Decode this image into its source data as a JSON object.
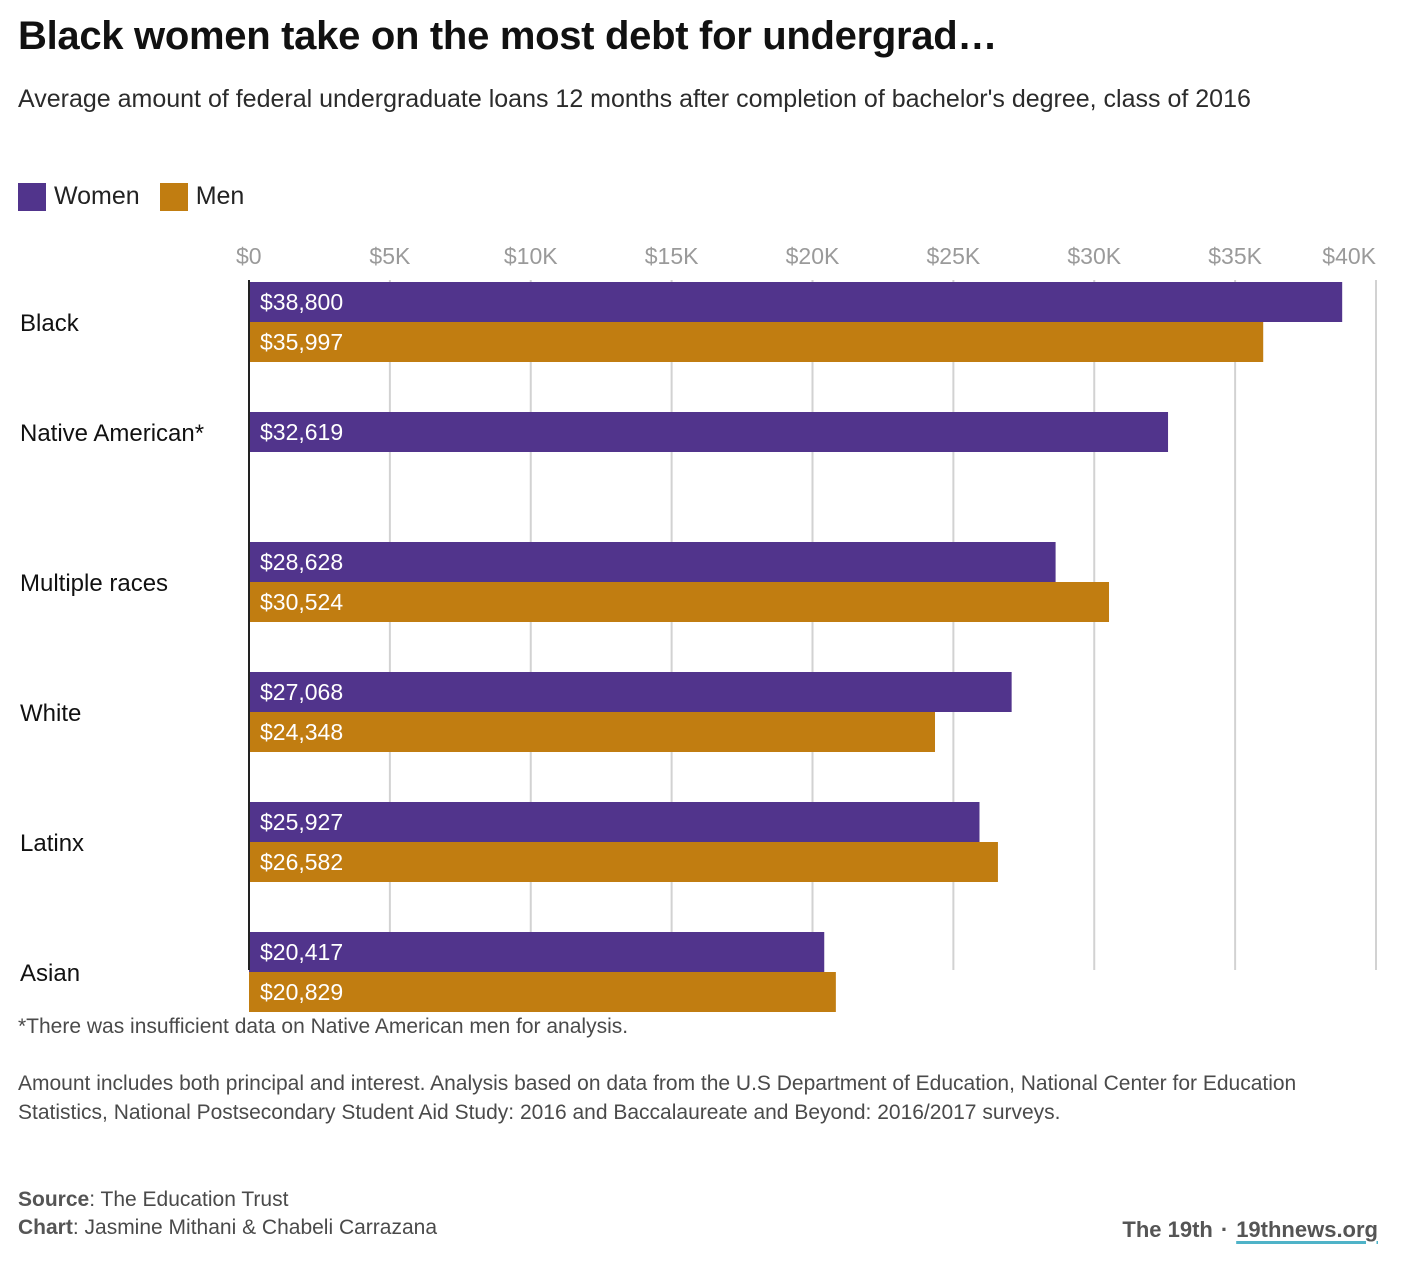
{
  "title": "Black women take on the most debt for undergrad…",
  "subtitle": "Average amount of federal undergraduate loans 12 months after completion of bachelor's degree, class of 2016",
  "legend": [
    {
      "label": "Women",
      "color": "#51348c"
    },
    {
      "label": "Men",
      "color": "#c17d11"
    }
  ],
  "chart_data": {
    "type": "bar",
    "orientation": "horizontal",
    "categories": [
      "Black",
      "Native American*",
      "Multiple races",
      "White",
      "Latinx",
      "Asian"
    ],
    "series": [
      {
        "name": "Women",
        "color": "#51348c",
        "values": [
          38800,
          32619,
          28628,
          27068,
          25927,
          20417
        ],
        "labels": [
          "$38,800",
          "$32,619",
          "$28,628",
          "$27,068",
          "$25,927",
          "$20,417"
        ]
      },
      {
        "name": "Men",
        "color": "#c17d11",
        "values": [
          35997,
          null,
          30524,
          24348,
          26582,
          20829
        ],
        "labels": [
          "$35,997",
          "",
          "$30,524",
          "$24,348",
          "$26,582",
          "$20,829"
        ]
      }
    ],
    "x_ticks": [
      0,
      5000,
      10000,
      15000,
      20000,
      25000,
      30000,
      35000,
      40000
    ],
    "x_tick_labels": [
      "$0",
      "$5K",
      "$10K",
      "$15K",
      "$20K",
      "$25K",
      "$30K",
      "$35K",
      "$40K"
    ],
    "xlim": [
      0,
      40000
    ],
    "grid": true
  },
  "footnote": "*There was insufficient data on Native American men for analysis.",
  "note": "Amount includes both principal and interest. Analysis based on data from the U.S Department of Education, National Center for Education Statistics, National Postsecondary Student Aid Study: 2016 and Baccalaureate and Beyond: 2016/2017 surveys.",
  "source_label": "Source",
  "source_value": ": The Education Trust",
  "chart_credit_label": "Chart",
  "chart_credit_value": ": Jasmine Mithani & Chabeli Carrazana",
  "brand_name": "The 19th",
  "brand_separator": "·",
  "brand_link": "19thnews.org"
}
